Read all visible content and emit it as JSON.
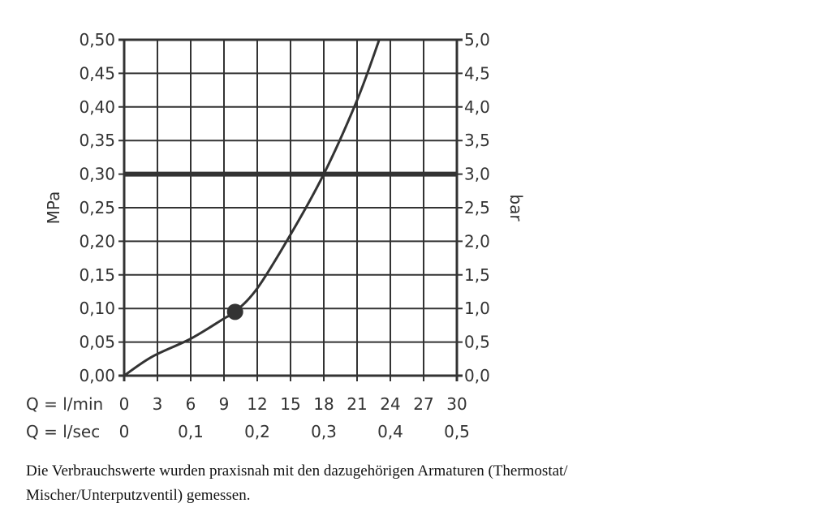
{
  "chart_data": {
    "type": "line",
    "y_left": {
      "label": "MPa",
      "ticks": [
        "0,00",
        "0,05",
        "0,10",
        "0,15",
        "0,20",
        "0,25",
        "0,30",
        "0,35",
        "0,40",
        "0,45",
        "0,50"
      ],
      "range": [
        0,
        0.5
      ]
    },
    "y_right": {
      "label": "bar",
      "ticks": [
        "0,0",
        "0,5",
        "1,0",
        "1,5",
        "2,0",
        "2,5",
        "3,0",
        "3,5",
        "4,0",
        "4,5",
        "5,0"
      ],
      "range": [
        0,
        5
      ]
    },
    "x_primary": {
      "label": "Q = l/min",
      "ticks": [
        "0",
        "3",
        "6",
        "9",
        "12",
        "15",
        "18",
        "21",
        "24",
        "27",
        "30"
      ],
      "range": [
        0,
        30
      ]
    },
    "x_secondary": {
      "label": "Q = l/sec",
      "ticks": [
        {
          "value": 0,
          "text": "0"
        },
        {
          "value": 0.1,
          "text": "0,1"
        },
        {
          "value": 0.2,
          "text": "0,2"
        },
        {
          "value": 0.3,
          "text": "0,3"
        },
        {
          "value": 0.4,
          "text": "0,4"
        },
        {
          "value": 0.5,
          "text": "0,5"
        }
      ],
      "range": [
        0,
        0.5
      ]
    },
    "series": [
      {
        "x": [
          0,
          2.5,
          6,
          9,
          10,
          12,
          15,
          18,
          21,
          23
        ],
        "y": [
          0,
          0.028,
          0.055,
          0.085,
          0.095,
          0.13,
          0.21,
          0.3,
          0.41,
          0.5
        ]
      }
    ],
    "marker": {
      "x": 10,
      "y": 0.095
    },
    "reference_line": {
      "y": 0.3
    },
    "drop_line": {
      "x": 18,
      "y": 0.3
    },
    "grid": true
  },
  "footnote": {
    "line1": "Die Verbrauchswerte wurden praxisnah mit den dazugehörigen Armaturen (Thermostat/",
    "line2": "Mischer/Unterputzventil) gemessen."
  },
  "colors": {
    "line": "#333333",
    "grid": "#333333",
    "text": "#333333"
  }
}
